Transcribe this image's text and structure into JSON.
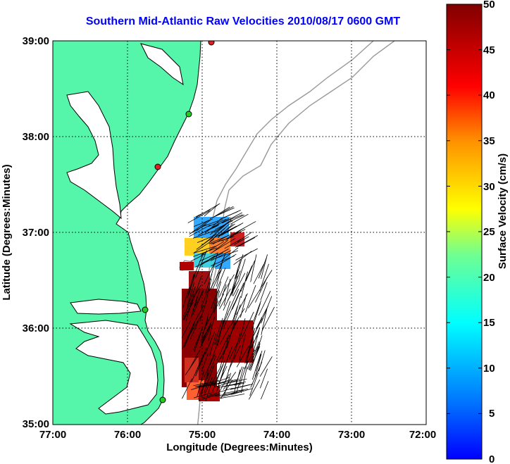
{
  "title": "Southern Mid-Atlantic Raw Velocities 2010/08/17 0600 GMT",
  "x_axis": {
    "label": "Longitude (Degrees:Minutes)",
    "ticks": [
      "77:00",
      "76:00",
      "75:00",
      "74:00",
      "73:00",
      "72:00"
    ]
  },
  "y_axis": {
    "label": "Latitude (Degrees:Minutes)",
    "ticks": [
      "39:00",
      "38:00",
      "37:00",
      "36:00",
      "35:00"
    ]
  },
  "colorbar": {
    "label": "Surface Velocity (cm/s)",
    "ticks": [
      "50",
      "45",
      "40",
      "35",
      "30",
      "25",
      "20",
      "15",
      "10",
      "5",
      "0"
    ],
    "range": [
      0,
      50
    ]
  },
  "colors": {
    "title": "#0000ff",
    "land": "#55f5aa",
    "coastline": "#000000",
    "bathymetry": "#999999",
    "station": "#22cc22",
    "station_alert": "#e02020"
  }
}
